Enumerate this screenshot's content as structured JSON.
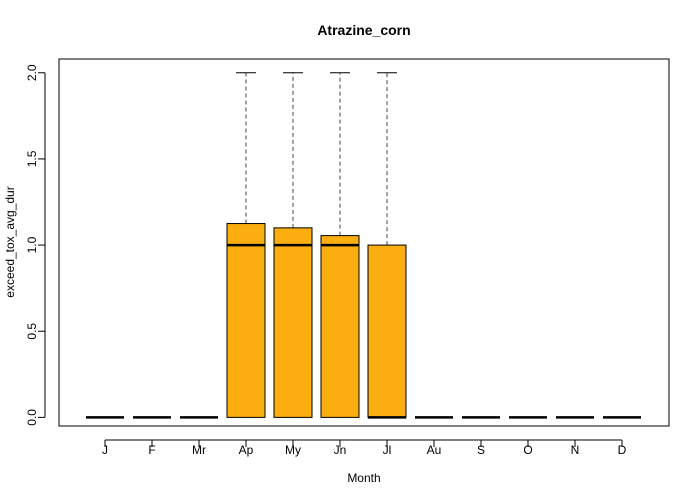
{
  "chart_data": {
    "type": "boxplot",
    "title": "Atrazine_corn",
    "xlabel": "Month",
    "ylabel": "exceed_tox_avg_dur",
    "ylim": [
      -0.05,
      2.08
    ],
    "yticks": [
      "0.0",
      "0.5",
      "1.0",
      "1.5",
      "2.0"
    ],
    "yticks_values": [
      0.0,
      0.5,
      1.0,
      1.5,
      2.0
    ],
    "grid": false,
    "legend": "none",
    "box_color": "#FCAD0F",
    "categories": [
      "J",
      "F",
      "Mr",
      "Ap",
      "My",
      "Jn",
      "Jl",
      "Au",
      "S",
      "O",
      "N",
      "D"
    ],
    "boxes": [
      {
        "min": 0,
        "q1": 0,
        "median": 0,
        "q3": 0,
        "max": 0
      },
      {
        "min": 0,
        "q1": 0,
        "median": 0,
        "q3": 0,
        "max": 0
      },
      {
        "min": 0,
        "q1": 0,
        "median": 0,
        "q3": 0,
        "max": 0
      },
      {
        "min": 0,
        "q1": 0,
        "median": 1.0,
        "q3": 1.125,
        "max": 2.0
      },
      {
        "min": 0,
        "q1": 0,
        "median": 1.0,
        "q3": 1.1,
        "max": 2.0
      },
      {
        "min": 0,
        "q1": 0,
        "median": 1.0,
        "q3": 1.055,
        "max": 2.0
      },
      {
        "min": 0,
        "q1": 0,
        "median": 0,
        "q3": 1.0,
        "max": 2.0
      },
      {
        "min": 0,
        "q1": 0,
        "median": 0,
        "q3": 0,
        "max": 0
      },
      {
        "min": 0,
        "q1": 0,
        "median": 0,
        "q3": 0,
        "max": 0
      },
      {
        "min": 0,
        "q1": 0,
        "median": 0,
        "q3": 0,
        "max": 0
      },
      {
        "min": 0,
        "q1": 0,
        "median": 0,
        "q3": 0,
        "max": 0
      },
      {
        "min": 0,
        "q1": 0,
        "median": 0,
        "q3": 0,
        "max": 0
      }
    ]
  }
}
